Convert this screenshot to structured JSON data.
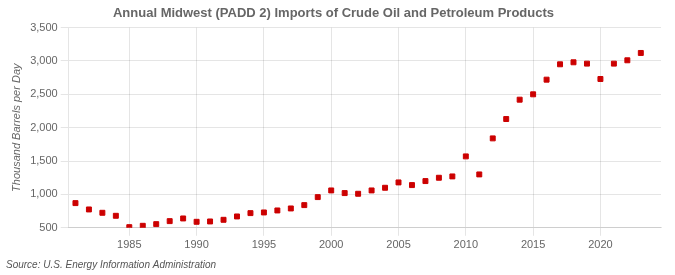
{
  "chart_data": {
    "type": "scatter",
    "title": "Annual Midwest (PADD 2) Imports of Crude Oil and Petroleum Products",
    "ylabel": "Thousand Barrels per Day",
    "source": "Source: U.S. Energy Information Administration",
    "x": [
      1981,
      1982,
      1983,
      1984,
      1985,
      1986,
      1987,
      1988,
      1989,
      1990,
      1991,
      1992,
      1993,
      1994,
      1995,
      1996,
      1997,
      1998,
      1999,
      2000,
      2001,
      2002,
      2003,
      2004,
      2005,
      2006,
      2007,
      2008,
      2009,
      2010,
      2011,
      2012,
      2013,
      2014,
      2015,
      2016,
      2017,
      2018,
      2019,
      2020,
      2021,
      2022,
      2023
    ],
    "values": [
      870,
      775,
      725,
      680,
      510,
      530,
      555,
      600,
      640,
      590,
      595,
      620,
      670,
      720,
      730,
      760,
      790,
      840,
      960,
      1060,
      1020,
      1010,
      1060,
      1100,
      1180,
      1140,
      1200,
      1250,
      1270,
      1570,
      1300,
      1840,
      2130,
      2420,
      2500,
      2720,
      2950,
      2980,
      2960,
      2730,
      2960,
      3010,
      3120
    ],
    "color": "#cc0000",
    "marker": "square",
    "xlim": [
      1980.5,
      2024.5
    ],
    "xticks": [
      1985,
      1990,
      1995,
      2000,
      2005,
      2010,
      2015,
      2020
    ],
    "ylim": [
      500,
      3500
    ],
    "yticks": [
      500,
      {
        "value": 1000,
        "label": "1,000"
      },
      {
        "value": 1500,
        "label": "1,500"
      },
      {
        "value": 2000,
        "label": "2,000"
      },
      {
        "value": 2500,
        "label": "2,500"
      },
      {
        "value": 3000,
        "label": "3,000"
      },
      {
        "value": 3500,
        "label": "3,500"
      }
    ],
    "grid": true
  }
}
